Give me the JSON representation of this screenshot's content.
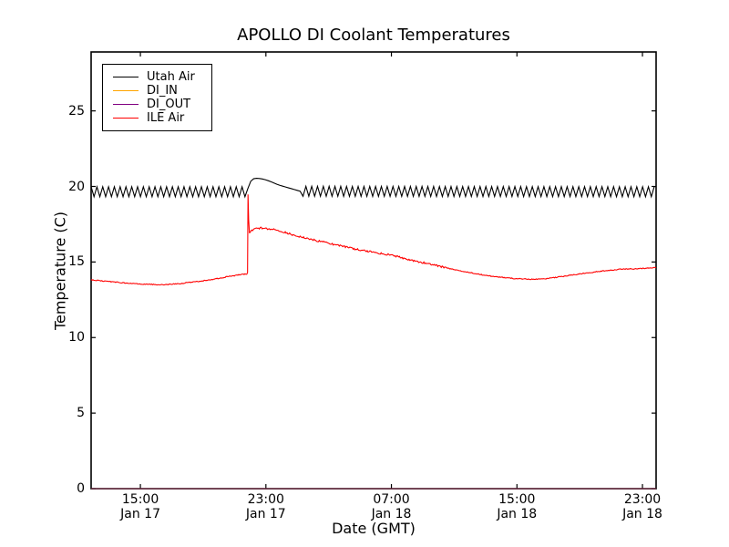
{
  "window": {
    "background": "#ffffff",
    "frame_color": "#000000",
    "text_color": "#000000"
  },
  "chart_data": {
    "type": "line",
    "title": "APOLLO DI Coolant Temperatures",
    "xlabel": "Date (GMT)",
    "ylabel": "Temperature (C)",
    "x_unit_note": "hours since Jan 17 00:00 GMT",
    "xlim": [
      11.86,
      47.87
    ],
    "ylim": [
      0,
      28.9
    ],
    "grid": false,
    "legend_position": "upper-left",
    "yticks": [
      {
        "v": 0,
        "label": "0"
      },
      {
        "v": 5,
        "label": "5"
      },
      {
        "v": 10,
        "label": "10"
      },
      {
        "v": 15,
        "label": "15"
      },
      {
        "v": 20,
        "label": "20"
      },
      {
        "v": 25,
        "label": "25"
      }
    ],
    "xticks": [
      {
        "t": 15,
        "time": "15:00",
        "date": "Jan 17"
      },
      {
        "t": 23,
        "time": "23:00",
        "date": "Jan 17"
      },
      {
        "t": 31,
        "time": "07:00",
        "date": "Jan 18"
      },
      {
        "t": 39,
        "time": "15:00",
        "date": "Jan 18"
      },
      {
        "t": 47,
        "time": "23:00",
        "date": "Jan 18"
      }
    ],
    "series": [
      {
        "name": "Utah Air",
        "color": "#000000",
        "style": "zigzag",
        "zigzag_amplitude": 0.33,
        "zigzag_period_hours": 0.37,
        "zigzag_suppressed": [
          [
            21.78,
            25.2
          ]
        ],
        "baseline": [
          [
            11.86,
            19.65
          ],
          [
            21.78,
            19.65
          ],
          [
            21.88,
            19.95
          ],
          [
            22.0,
            20.3
          ],
          [
            22.15,
            20.5
          ],
          [
            22.45,
            20.55
          ],
          [
            22.75,
            20.5
          ],
          [
            23.05,
            20.42
          ],
          [
            23.35,
            20.3
          ],
          [
            23.8,
            20.1
          ],
          [
            24.3,
            19.95
          ],
          [
            24.8,
            19.8
          ],
          [
            25.2,
            19.68
          ],
          [
            47.87,
            19.65
          ]
        ]
      },
      {
        "name": "DI_IN",
        "color": "#ffa500",
        "style": "line",
        "plot_opacity": 0.5,
        "points": [
          [
            11.86,
            0
          ],
          [
            47.87,
            0
          ]
        ]
      },
      {
        "name": "DI_OUT",
        "color": "#800080",
        "style": "line",
        "plot_opacity": 0.55,
        "points": [
          [
            11.86,
            0
          ],
          [
            47.87,
            0
          ]
        ]
      },
      {
        "name": "ILE Air",
        "color": "#ff0000",
        "style": "line",
        "noise": 0.06,
        "noise_range": [
          21.95,
          34.5
        ],
        "points": [
          [
            11.86,
            13.82
          ],
          [
            12.6,
            13.75
          ],
          [
            13.6,
            13.65
          ],
          [
            14.6,
            13.57
          ],
          [
            15.6,
            13.52
          ],
          [
            16.6,
            13.5
          ],
          [
            17.6,
            13.58
          ],
          [
            18.6,
            13.7
          ],
          [
            19.6,
            13.85
          ],
          [
            20.4,
            14.0
          ],
          [
            21.1,
            14.12
          ],
          [
            21.5,
            14.18
          ],
          [
            21.78,
            14.2
          ],
          [
            21.83,
            14.3
          ],
          [
            21.86,
            19.5
          ],
          [
            21.9,
            17.8
          ],
          [
            21.95,
            16.95
          ],
          [
            22.05,
            17.05
          ],
          [
            22.3,
            17.2
          ],
          [
            22.7,
            17.25
          ],
          [
            23.1,
            17.2
          ],
          [
            23.5,
            17.15
          ],
          [
            23.9,
            17.05
          ],
          [
            24.4,
            16.9
          ],
          [
            24.9,
            16.75
          ],
          [
            25.4,
            16.62
          ],
          [
            25.9,
            16.5
          ],
          [
            26.4,
            16.38
          ],
          [
            26.9,
            16.27
          ],
          [
            27.4,
            16.15
          ],
          [
            27.9,
            16.03
          ],
          [
            28.4,
            15.92
          ],
          [
            28.9,
            15.82
          ],
          [
            29.4,
            15.72
          ],
          [
            29.9,
            15.63
          ],
          [
            30.4,
            15.55
          ],
          [
            30.9,
            15.47
          ],
          [
            31.4,
            15.35
          ],
          [
            31.9,
            15.22
          ],
          [
            32.4,
            15.1
          ],
          [
            32.9,
            14.98
          ],
          [
            33.4,
            14.87
          ],
          [
            33.9,
            14.76
          ],
          [
            34.4,
            14.64
          ],
          [
            34.9,
            14.52
          ],
          [
            35.4,
            14.42
          ],
          [
            35.9,
            14.32
          ],
          [
            36.4,
            14.22
          ],
          [
            36.9,
            14.13
          ],
          [
            37.4,
            14.06
          ],
          [
            37.9,
            14.0
          ],
          [
            38.4,
            13.95
          ],
          [
            38.9,
            13.9
          ],
          [
            39.4,
            13.88
          ],
          [
            39.9,
            13.86
          ],
          [
            40.4,
            13.86
          ],
          [
            40.9,
            13.9
          ],
          [
            41.4,
            13.97
          ],
          [
            41.9,
            14.04
          ],
          [
            42.4,
            14.12
          ],
          [
            42.9,
            14.2
          ],
          [
            43.4,
            14.27
          ],
          [
            43.9,
            14.33
          ],
          [
            44.4,
            14.4
          ],
          [
            44.9,
            14.45
          ],
          [
            45.4,
            14.5
          ],
          [
            45.9,
            14.53
          ],
          [
            46.4,
            14.55
          ],
          [
            46.9,
            14.57
          ],
          [
            47.4,
            14.6
          ],
          [
            47.87,
            14.62
          ]
        ]
      }
    ]
  }
}
